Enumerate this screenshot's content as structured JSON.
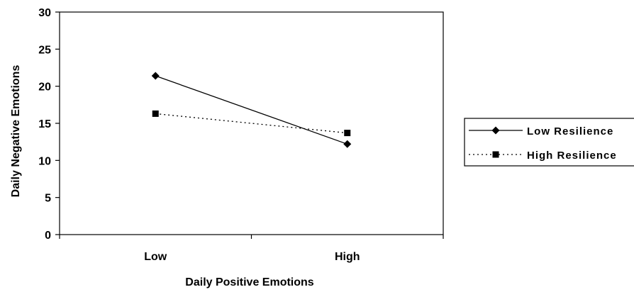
{
  "chart_data": {
    "type": "line",
    "xlabel": "Daily Positive Emotions",
    "ylabel": "Daily Negative Emotions",
    "categories": [
      "Low",
      "High"
    ],
    "ylim": [
      0,
      30
    ],
    "yticks": [
      0,
      5,
      10,
      15,
      20,
      25,
      30
    ],
    "grid": false,
    "legend_position": "right",
    "series": [
      {
        "name": "Low Resilience",
        "values": [
          21.4,
          12.2
        ],
        "line_style": "solid",
        "marker": "diamond",
        "color": "#000000"
      },
      {
        "name": "High Resilience",
        "values": [
          16.3,
          13.7
        ],
        "line_style": "dotted",
        "marker": "square",
        "color": "#000000"
      }
    ]
  }
}
